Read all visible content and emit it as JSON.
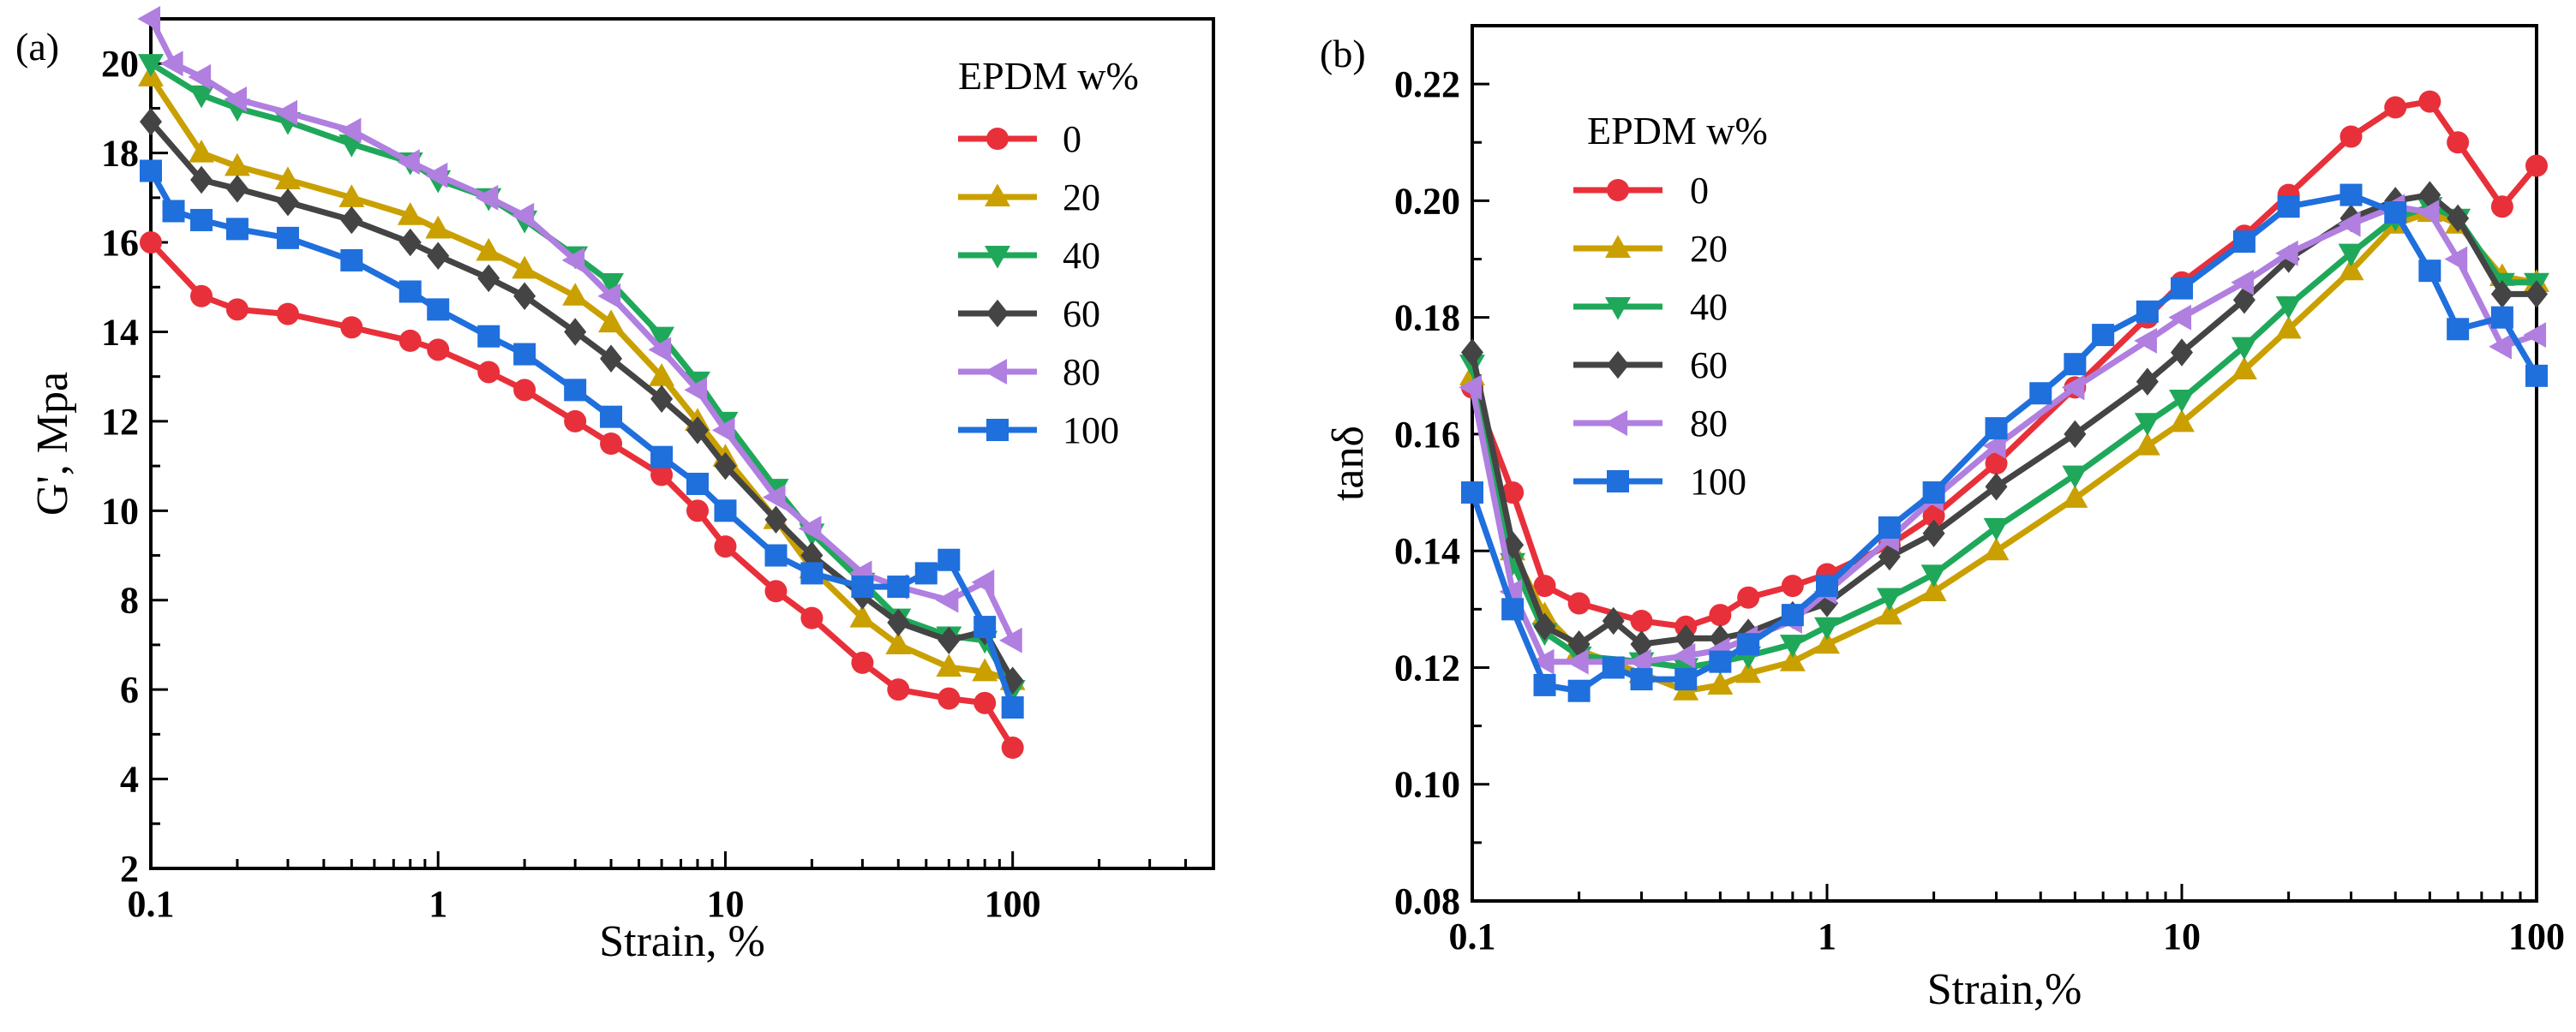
{
  "figure": {
    "panel_labels": [
      "(a)",
      "(b)"
    ]
  },
  "colors": {
    "0": "#e8303a",
    "20": "#c9a000",
    "40": "#1fa85a",
    "60": "#444444",
    "80": "#b07fe0",
    "100": "#1f6fdd"
  },
  "chart_data": [
    {
      "type": "line",
      "panel": "(a)",
      "title": "",
      "xlabel": "Strain, %",
      "ylabel": "G', Mpa",
      "xscale": "log",
      "xlim": [
        0.1,
        500
      ],
      "ylim": [
        2,
        21
      ],
      "xticks": [
        0.1,
        1,
        10,
        100
      ],
      "xtick_labels": [
        "0.1",
        "1",
        "10",
        "100"
      ],
      "yticks": [
        2,
        4,
        6,
        8,
        10,
        12,
        14,
        16,
        18,
        20
      ],
      "ytick_labels": [
        "2",
        "4",
        "6",
        "8",
        "10",
        "12",
        "14",
        "16",
        "18",
        "20"
      ],
      "legend_title": "EPDM  w%",
      "legend_position": "top-right",
      "series": [
        {
          "name": "0",
          "marker": "circle",
          "color": "#e8303a",
          "x": [
            0.1,
            0.15,
            0.2,
            0.3,
            0.5,
            0.8,
            1,
            1.5,
            2,
            3,
            4,
            6,
            8,
            10,
            15,
            20,
            30,
            40,
            60,
            80,
            100
          ],
          "y": [
            16.0,
            14.8,
            14.5,
            14.4,
            14.1,
            13.8,
            13.6,
            13.1,
            12.7,
            12.0,
            11.5,
            10.8,
            10.0,
            9.2,
            8.2,
            7.6,
            6.6,
            6.0,
            5.8,
            5.7,
            4.7
          ]
        },
        {
          "name": "20",
          "marker": "triangle-up",
          "color": "#c9a000",
          "x": [
            0.1,
            0.15,
            0.2,
            0.3,
            0.5,
            0.8,
            1,
            1.5,
            2,
            3,
            4,
            6,
            8,
            10,
            15,
            20,
            30,
            40,
            60,
            80,
            100
          ],
          "y": [
            19.7,
            18.0,
            17.7,
            17.4,
            17.0,
            16.6,
            16.3,
            15.8,
            15.4,
            14.8,
            14.2,
            13.0,
            12.0,
            11.2,
            9.8,
            8.7,
            7.6,
            7.0,
            6.5,
            6.4,
            6.2
          ]
        },
        {
          "name": "40",
          "marker": "triangle-down",
          "color": "#1fa85a",
          "x": [
            0.1,
            0.15,
            0.2,
            0.3,
            0.5,
            0.8,
            1,
            1.5,
            2,
            3,
            4,
            6,
            8,
            10,
            15,
            20,
            30,
            40,
            60,
            80,
            100
          ],
          "y": [
            20.0,
            19.3,
            19.0,
            18.7,
            18.2,
            17.8,
            17.4,
            17.0,
            16.5,
            15.7,
            15.1,
            13.9,
            12.9,
            12.0,
            10.5,
            9.5,
            8.4,
            7.6,
            7.2,
            7.1,
            6.0
          ]
        },
        {
          "name": "60",
          "marker": "diamond",
          "color": "#444444",
          "x": [
            0.1,
            0.15,
            0.2,
            0.3,
            0.5,
            0.8,
            1,
            1.5,
            2,
            3,
            4,
            6,
            8,
            10,
            15,
            20,
            30,
            40,
            60,
            80,
            100
          ],
          "y": [
            18.7,
            17.4,
            17.2,
            16.9,
            16.5,
            16.0,
            15.7,
            15.2,
            14.8,
            14.0,
            13.4,
            12.5,
            11.8,
            11.0,
            9.8,
            9.0,
            8.1,
            7.5,
            7.1,
            7.3,
            6.2
          ]
        },
        {
          "name": "80",
          "marker": "triangle-left",
          "color": "#b07fe0",
          "x": [
            0.1,
            0.12,
            0.15,
            0.2,
            0.3,
            0.5,
            0.8,
            1,
            1.5,
            2,
            3,
            4,
            6,
            8,
            10,
            15,
            20,
            30,
            40,
            60,
            80,
            100
          ],
          "y": [
            21.0,
            20.0,
            19.7,
            19.2,
            18.9,
            18.5,
            17.8,
            17.5,
            17.0,
            16.6,
            15.6,
            14.8,
            13.6,
            12.7,
            11.8,
            10.3,
            9.6,
            8.6,
            8.3,
            8.0,
            8.4,
            7.1
          ]
        },
        {
          "name": "100",
          "marker": "square",
          "color": "#1f6fdd",
          "x": [
            0.1,
            0.12,
            0.15,
            0.2,
            0.3,
            0.5,
            0.8,
            1,
            1.5,
            2,
            3,
            4,
            6,
            8,
            10,
            15,
            20,
            30,
            40,
            50,
            60,
            80,
            100
          ],
          "y": [
            17.6,
            16.7,
            16.5,
            16.3,
            16.1,
            15.6,
            14.9,
            14.5,
            13.9,
            13.5,
            12.7,
            12.1,
            11.2,
            10.6,
            10.0,
            9.0,
            8.6,
            8.3,
            8.3,
            8.6,
            8.9,
            7.4,
            5.6
          ]
        }
      ]
    },
    {
      "type": "line",
      "panel": "(b)",
      "title": "",
      "xlabel": "Strain,%",
      "ylabel": "tanδ",
      "xscale": "log",
      "xlim": [
        0.1,
        100
      ],
      "ylim": [
        0.08,
        0.23
      ],
      "xticks": [
        0.1,
        1,
        10,
        100
      ],
      "xtick_labels": [
        "0.1",
        "1",
        "10",
        "100"
      ],
      "yticks": [
        0.08,
        0.1,
        0.12,
        0.14,
        0.16,
        0.18,
        0.2,
        0.22
      ],
      "ytick_labels": [
        "0.08",
        "0.10",
        "0.12",
        "0.14",
        "0.16",
        "0.18",
        "0.20",
        "0.22"
      ],
      "legend_title": "EPDM  w%",
      "legend_position": "top-left",
      "series": [
        {
          "name": "0",
          "marker": "circle",
          "color": "#e8303a",
          "x": [
            0.1,
            0.13,
            0.16,
            0.2,
            0.3,
            0.4,
            0.5,
            0.6,
            0.8,
            1,
            1.5,
            2,
            3,
            5,
            8,
            10,
            15,
            20,
            30,
            40,
            50,
            60,
            80,
            100
          ],
          "y": [
            0.168,
            0.15,
            0.134,
            0.131,
            0.128,
            0.127,
            0.129,
            0.132,
            0.134,
            0.136,
            0.141,
            0.146,
            0.155,
            0.168,
            0.18,
            0.186,
            0.194,
            0.201,
            0.211,
            0.216,
            0.217,
            0.21,
            0.199,
            0.206
          ]
        },
        {
          "name": "20",
          "marker": "triangle-up",
          "color": "#c9a000",
          "x": [
            0.1,
            0.13,
            0.16,
            0.2,
            0.3,
            0.4,
            0.5,
            0.6,
            0.8,
            1,
            1.5,
            2,
            3,
            5,
            8,
            10,
            15,
            20,
            30,
            40,
            50,
            60,
            80,
            100
          ],
          "y": [
            0.17,
            0.14,
            0.129,
            0.123,
            0.119,
            0.116,
            0.117,
            0.119,
            0.121,
            0.124,
            0.129,
            0.133,
            0.14,
            0.149,
            0.158,
            0.162,
            0.171,
            0.178,
            0.188,
            0.196,
            0.198,
            0.196,
            0.187,
            0.186
          ]
        },
        {
          "name": "40",
          "marker": "triangle-down",
          "color": "#1fa85a",
          "x": [
            0.1,
            0.13,
            0.16,
            0.2,
            0.3,
            0.4,
            0.5,
            0.6,
            0.8,
            1,
            1.5,
            2,
            3,
            5,
            8,
            10,
            15,
            20,
            30,
            40,
            50,
            60,
            80,
            100
          ],
          "y": [
            0.172,
            0.138,
            0.126,
            0.122,
            0.121,
            0.12,
            0.121,
            0.122,
            0.124,
            0.127,
            0.132,
            0.136,
            0.144,
            0.153,
            0.162,
            0.166,
            0.175,
            0.182,
            0.191,
            0.197,
            0.199,
            0.197,
            0.186,
            0.186
          ]
        },
        {
          "name": "60",
          "marker": "diamond",
          "color": "#444444",
          "x": [
            0.1,
            0.13,
            0.16,
            0.2,
            0.25,
            0.3,
            0.4,
            0.5,
            0.6,
            0.8,
            1,
            1.5,
            2,
            3,
            5,
            8,
            10,
            15,
            20,
            30,
            40,
            50,
            60,
            80,
            100
          ],
          "y": [
            0.174,
            0.141,
            0.127,
            0.124,
            0.128,
            0.124,
            0.125,
            0.125,
            0.126,
            0.129,
            0.131,
            0.139,
            0.143,
            0.151,
            0.16,
            0.169,
            0.174,
            0.183,
            0.19,
            0.197,
            0.2,
            0.201,
            0.197,
            0.184,
            0.184
          ]
        },
        {
          "name": "80",
          "marker": "triangle-left",
          "color": "#b07fe0",
          "x": [
            0.1,
            0.13,
            0.16,
            0.2,
            0.3,
            0.4,
            0.5,
            0.6,
            0.8,
            1,
            1.5,
            2,
            3,
            5,
            8,
            10,
            15,
            20,
            30,
            40,
            50,
            60,
            80,
            100
          ],
          "y": [
            0.168,
            0.133,
            0.121,
            0.121,
            0.121,
            0.122,
            0.123,
            0.125,
            0.128,
            0.133,
            0.142,
            0.149,
            0.158,
            0.168,
            0.176,
            0.18,
            0.186,
            0.191,
            0.196,
            0.199,
            0.198,
            0.19,
            0.175,
            0.177
          ]
        },
        {
          "name": "100",
          "marker": "square",
          "color": "#1f6fdd",
          "x": [
            0.1,
            0.13,
            0.16,
            0.2,
            0.25,
            0.3,
            0.4,
            0.5,
            0.6,
            0.8,
            1,
            1.5,
            2,
            3,
            4,
            5,
            6,
            8,
            10,
            15,
            20,
            30,
            40,
            50,
            60,
            80,
            100
          ],
          "y": [
            0.15,
            0.13,
            0.117,
            0.116,
            0.12,
            0.118,
            0.118,
            0.121,
            0.124,
            0.129,
            0.134,
            0.144,
            0.15,
            0.161,
            0.167,
            0.172,
            0.177,
            0.181,
            0.185,
            0.193,
            0.199,
            0.201,
            0.198,
            0.188,
            0.178,
            0.18,
            0.17
          ]
        }
      ]
    }
  ]
}
